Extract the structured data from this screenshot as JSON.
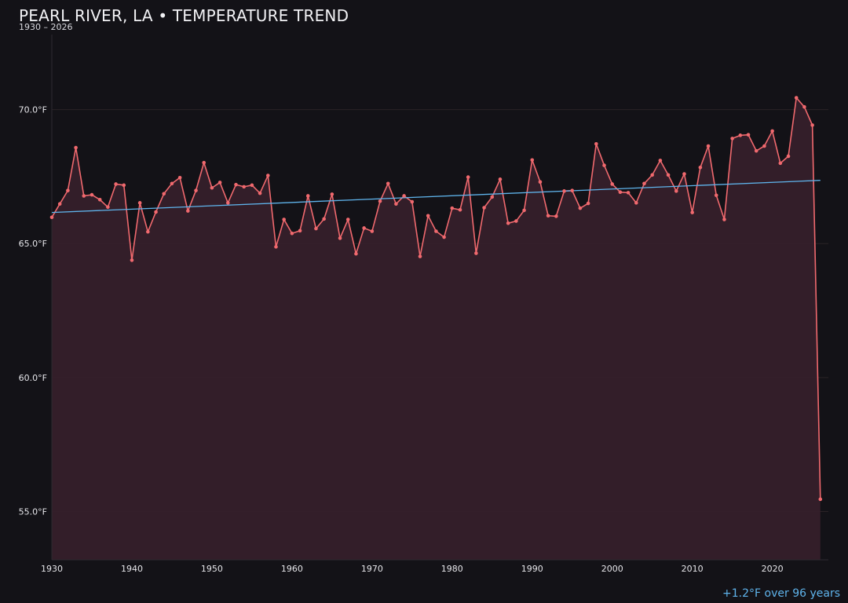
{
  "header": {
    "title": "PEARL RIVER, LA • TEMPERATURE TREND",
    "subtitle": "1930 – 2026"
  },
  "footer": {
    "trend_note": "+1.2°F over 96 years"
  },
  "colors": {
    "background": "#131217",
    "series": "#f0696e",
    "fill": "#35202a",
    "trend": "#5fb4ec",
    "grid": "#2a2226"
  },
  "chart_data": {
    "type": "line",
    "title": "PEARL RIVER, LA • TEMPERATURE TREND",
    "subtitle": "1930 – 2026",
    "xlabel": "",
    "ylabel": "",
    "xlim": [
      1930,
      2027
    ],
    "ylim": [
      53.2,
      72.8
    ],
    "x_ticks": [
      1930,
      1940,
      1950,
      1960,
      1970,
      1980,
      1990,
      2000,
      2010,
      2020
    ],
    "y_ticks": [
      55,
      60,
      65,
      70
    ],
    "y_tick_labels": [
      "55.0°F",
      "60.0°F",
      "65.0°F",
      "70.0°F"
    ],
    "grid": true,
    "area_fill": true,
    "series": [
      {
        "x": [
          1930,
          1931,
          1932,
          1933,
          1934,
          1935,
          1936,
          1937,
          1938,
          1939,
          1940,
          1941,
          1942,
          1943,
          1944,
          1945,
          1946,
          1947,
          1948,
          1949,
          1950,
          1951,
          1952,
          1953,
          1954,
          1955,
          1956,
          1957,
          1958,
          1959,
          1960,
          1961,
          1962,
          1963,
          1964,
          1965,
          1966,
          1967,
          1968,
          1969,
          1970,
          1971,
          1972,
          1973,
          1974,
          1975,
          1976,
          1977,
          1978,
          1979,
          1980,
          1981,
          1982,
          1983,
          1984,
          1985,
          1986,
          1987,
          1988,
          1989,
          1990,
          1991,
          1992,
          1993,
          1994,
          1995,
          1996,
          1997,
          1998,
          1999,
          2000,
          2001,
          2002,
          2003,
          2004,
          2005,
          2006,
          2007,
          2008,
          2009,
          2010,
          2011,
          2012,
          2013,
          2014,
          2015,
          2016,
          2017,
          2018,
          2019,
          2020,
          2021,
          2022,
          2023,
          2024,
          2025,
          2026
        ],
        "values": [
          65.98,
          66.48,
          66.98,
          68.58,
          66.78,
          66.82,
          66.64,
          66.36,
          67.22,
          67.18,
          64.38,
          66.52,
          65.44,
          66.18,
          66.86,
          67.24,
          67.46,
          66.22,
          66.98,
          68.02,
          67.08,
          67.28,
          66.52,
          67.2,
          67.12,
          67.18,
          66.88,
          67.54,
          64.88,
          65.9,
          65.38,
          65.48,
          66.78,
          65.56,
          65.92,
          66.84,
          65.2,
          65.9,
          64.62,
          65.58,
          65.46,
          66.58,
          67.24,
          66.48,
          66.78,
          66.56,
          64.52,
          66.04,
          65.46,
          65.24,
          66.32,
          66.26,
          67.48,
          64.64,
          66.34,
          66.74,
          67.4,
          65.76,
          65.84,
          66.24,
          68.12,
          67.3,
          66.04,
          66.02,
          66.96,
          66.98,
          66.32,
          66.5,
          68.72,
          67.92,
          67.22,
          66.92,
          66.9,
          66.52,
          67.24,
          67.56,
          68.1,
          67.56,
          66.96,
          67.6,
          66.16,
          67.84,
          68.64,
          66.8,
          65.9,
          68.92,
          69.04,
          69.06,
          68.46,
          68.64,
          69.2,
          68.0,
          68.26,
          70.44,
          70.1,
          69.42,
          55.46
        ],
        "color": "#f0696e"
      },
      {
        "x": [
          1930,
          2026
        ],
        "values": [
          66.16,
          67.36
        ],
        "color": "#5fb4ec",
        "style": "trend"
      }
    ]
  }
}
